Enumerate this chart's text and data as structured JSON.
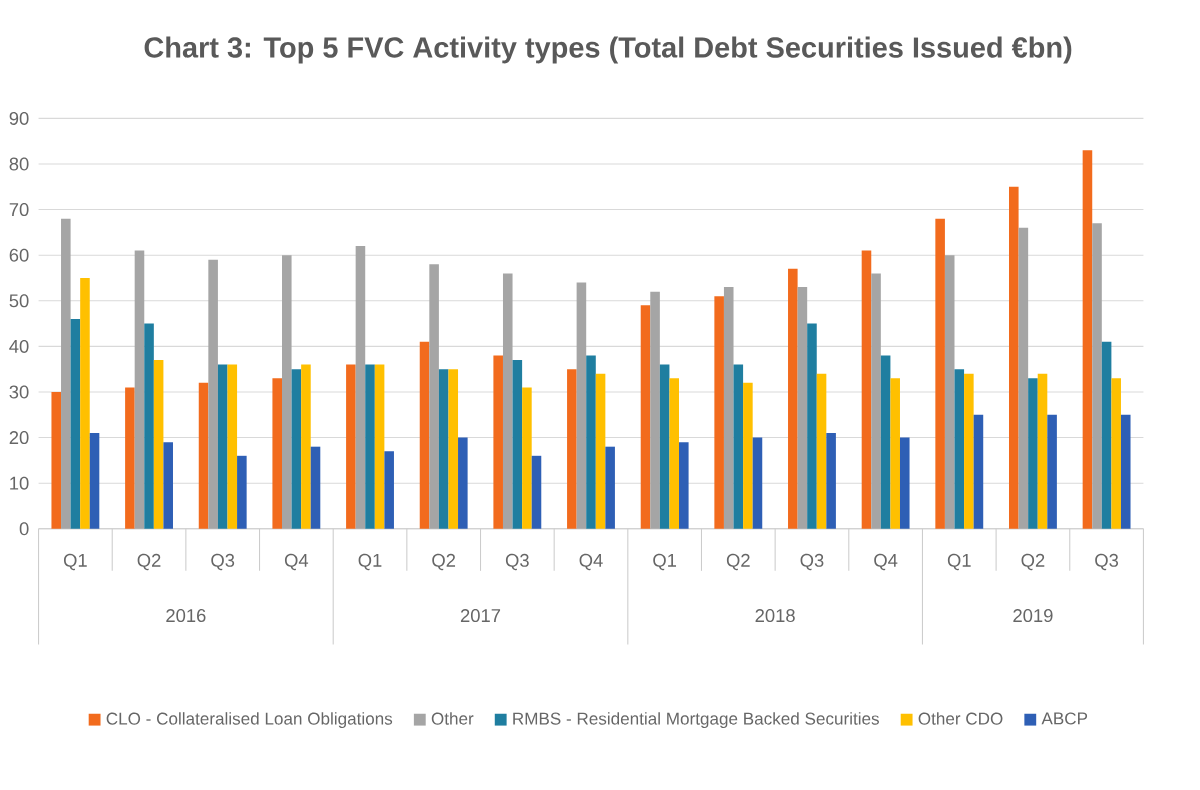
{
  "chart_data": {
    "type": "bar",
    "title": "Chart 3: Top 5 FVC Activity types (Total Debt Securities Issued €bn)",
    "categories": [
      "Q1",
      "Q2",
      "Q3",
      "Q4",
      "Q1",
      "Q2",
      "Q3",
      "Q4",
      "Q1",
      "Q2",
      "Q3",
      "Q4",
      "Q1",
      "Q2",
      "Q3"
    ],
    "annotations": [
      "2016",
      "2017",
      "2018",
      "2019"
    ],
    "series": [
      {
        "name": "CLO - Collateralised Loan Obligations",
        "color": "#f26b1d",
        "values": [
          30,
          31,
          32,
          33,
          36,
          41,
          38,
          35,
          49,
          51,
          57,
          61,
          68,
          75,
          83
        ]
      },
      {
        "name": "Other",
        "color": "#a5a5a5",
        "values": [
          68,
          61,
          59,
          60,
          62,
          58,
          56,
          54,
          52,
          53,
          53,
          56,
          60,
          66,
          67
        ]
      },
      {
        "name": "RMBS - Residential Mortgage Backed Securities",
        "color": "#1f7ea0",
        "values": [
          46,
          45,
          36,
          35,
          36,
          35,
          37,
          38,
          36,
          36,
          45,
          38,
          35,
          33,
          41
        ]
      },
      {
        "name": "Other CDO",
        "color": "#ffc000",
        "values": [
          55,
          37,
          36,
          36,
          36,
          35,
          31,
          34,
          33,
          32,
          34,
          33,
          34,
          34,
          33
        ]
      },
      {
        "name": "ABCP",
        "color": "#2e5fb5",
        "values": [
          21,
          19,
          16,
          18,
          17,
          20,
          16,
          18,
          19,
          20,
          21,
          20,
          25,
          25,
          25
        ]
      }
    ],
    "ylim": [
      0,
      90
    ],
    "yticks": [
      0,
      10,
      20,
      30,
      40,
      50,
      60,
      70,
      80,
      90
    ],
    "grid": "y",
    "legend": "bottom"
  }
}
